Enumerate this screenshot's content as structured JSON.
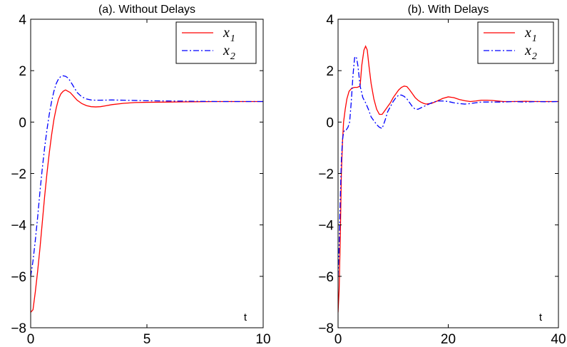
{
  "chart_data": [
    {
      "type": "line",
      "title": "(a). Without Delays",
      "xlabel": "t",
      "ylabel": "",
      "xlim": [
        0,
        10
      ],
      "ylim": [
        -8,
        4
      ],
      "xticks": [
        0,
        5,
        10
      ],
      "yticks": [
        -8,
        -6,
        -4,
        -2,
        0,
        2,
        4
      ],
      "xtick_labels": [
        "0",
        "5",
        "10"
      ],
      "ytick_labels": [
        "−8",
        "−6",
        "−4",
        "−2",
        "0",
        "2",
        "4"
      ],
      "grid": false,
      "legend_position": "top-right",
      "series": [
        {
          "name": "x",
          "name_sub": "1",
          "color": "#ff0000",
          "style": "solid",
          "x": [
            0,
            0.1,
            0.2,
            0.3,
            0.4,
            0.5,
            0.6,
            0.7,
            0.8,
            0.9,
            1.0,
            1.1,
            1.2,
            1.3,
            1.4,
            1.5,
            1.6,
            1.7,
            1.8,
            1.9,
            2.0,
            2.2,
            2.4,
            2.6,
            2.8,
            3.0,
            3.2,
            3.5,
            4.0,
            4.5,
            5.0,
            6.0,
            7.0,
            8.0,
            9.0,
            10.0
          ],
          "y": [
            -7.4,
            -7.3,
            -6.6,
            -5.8,
            -4.9,
            -3.9,
            -2.9,
            -2.0,
            -1.2,
            -0.5,
            0.1,
            0.55,
            0.9,
            1.1,
            1.2,
            1.25,
            1.2,
            1.15,
            1.05,
            0.95,
            0.85,
            0.72,
            0.64,
            0.6,
            0.59,
            0.6,
            0.63,
            0.68,
            0.73,
            0.76,
            0.77,
            0.78,
            0.79,
            0.8,
            0.8,
            0.8
          ]
        },
        {
          "name": "x",
          "name_sub": "2",
          "color": "#0000ff",
          "style": "dash-dot",
          "x": [
            0,
            0.1,
            0.2,
            0.3,
            0.4,
            0.5,
            0.6,
            0.7,
            0.8,
            0.9,
            1.0,
            1.1,
            1.2,
            1.3,
            1.4,
            1.5,
            1.6,
            1.7,
            1.8,
            1.9,
            2.0,
            2.2,
            2.4,
            2.6,
            2.8,
            3.0,
            3.5,
            4.0,
            5.0,
            6.0,
            7.0,
            8.0,
            9.0,
            10.0
          ],
          "y": [
            -6.0,
            -5.4,
            -4.6,
            -3.7,
            -2.7,
            -1.8,
            -1.0,
            -0.3,
            0.3,
            0.8,
            1.2,
            1.5,
            1.68,
            1.78,
            1.8,
            1.78,
            1.72,
            1.6,
            1.45,
            1.3,
            1.15,
            0.98,
            0.9,
            0.86,
            0.85,
            0.85,
            0.86,
            0.85,
            0.83,
            0.82,
            0.81,
            0.8,
            0.8,
            0.8
          ]
        }
      ]
    },
    {
      "type": "line",
      "title": "(b). With Delays",
      "xlabel": "t",
      "ylabel": "",
      "xlim": [
        0,
        40
      ],
      "ylim": [
        -8,
        4
      ],
      "xticks": [
        0,
        20,
        40
      ],
      "yticks": [
        -8,
        -6,
        -4,
        -2,
        0,
        2,
        4
      ],
      "xtick_labels": [
        "0",
        "20",
        "40"
      ],
      "ytick_labels": [
        "−8",
        "−6",
        "−4",
        "−2",
        "0",
        "2",
        "4"
      ],
      "grid": false,
      "legend_position": "top-right",
      "series": [
        {
          "name": "x",
          "name_sub": "1",
          "color": "#ff0000",
          "style": "solid",
          "x": [
            0,
            0.2,
            0.4,
            0.6,
            0.8,
            1.0,
            1.3,
            1.6,
            2.0,
            2.5,
            3.0,
            3.5,
            4.0,
            4.3,
            4.7,
            5.0,
            5.3,
            5.6,
            6.0,
            6.5,
            7.0,
            7.5,
            8.0,
            8.5,
            9.0,
            9.5,
            10.0,
            10.5,
            11.0,
            11.5,
            12.0,
            12.5,
            13.0,
            13.5,
            14.0,
            14.5,
            15.0,
            15.5,
            16.0,
            17.0,
            18.0,
            19.0,
            20.0,
            21.0,
            22.0,
            23.0,
            24.0,
            25.0,
            26.0,
            27.0,
            28.0,
            29.0,
            30.0,
            32.0,
            34.0,
            36.0,
            38.0,
            40.0
          ],
          "y": [
            -7.4,
            -6.5,
            -4.5,
            -2.0,
            -0.8,
            0.0,
            0.5,
            0.9,
            1.2,
            1.32,
            1.35,
            1.35,
            1.4,
            2.2,
            2.8,
            2.95,
            2.8,
            2.2,
            1.5,
            0.9,
            0.5,
            0.3,
            0.3,
            0.45,
            0.6,
            0.75,
            0.95,
            1.1,
            1.25,
            1.35,
            1.4,
            1.38,
            1.25,
            1.1,
            0.95,
            0.85,
            0.78,
            0.73,
            0.7,
            0.73,
            0.82,
            0.92,
            0.98,
            0.95,
            0.88,
            0.83,
            0.8,
            0.82,
            0.85,
            0.85,
            0.84,
            0.82,
            0.8,
            0.8,
            0.81,
            0.8,
            0.8,
            0.8
          ]
        },
        {
          "name": "x",
          "name_sub": "2",
          "color": "#0000ff",
          "style": "dash-dot",
          "x": [
            0,
            0.2,
            0.4,
            0.6,
            0.8,
            1.0,
            1.2,
            1.5,
            1.8,
            2.1,
            2.4,
            2.7,
            3.0,
            3.3,
            3.6,
            4.0,
            4.5,
            5.0,
            5.5,
            6.0,
            6.5,
            7.0,
            7.5,
            8.0,
            8.5,
            9.0,
            9.5,
            10.0,
            10.5,
            11.0,
            11.5,
            12.0,
            12.5,
            13.0,
            13.5,
            14.0,
            14.5,
            15.0,
            15.5,
            16.0,
            17.0,
            18.0,
            19.0,
            20.0,
            21.0,
            22.0,
            23.0,
            24.0,
            25.0,
            26.0,
            28.0,
            30.0,
            32.0,
            34.0,
            36.0,
            38.0,
            40.0
          ],
          "y": [
            -6.0,
            -4.8,
            -3.0,
            -1.5,
            -0.7,
            -0.4,
            -0.3,
            -0.3,
            -0.2,
            0.0,
            0.8,
            1.8,
            2.5,
            2.55,
            2.2,
            1.4,
            0.95,
            0.75,
            0.5,
            0.2,
            0.05,
            -0.1,
            -0.2,
            -0.25,
            0.05,
            0.4,
            0.6,
            0.8,
            0.95,
            1.05,
            1.05,
            1.0,
            0.9,
            0.75,
            0.6,
            0.5,
            0.5,
            0.55,
            0.6,
            0.65,
            0.75,
            0.82,
            0.82,
            0.8,
            0.75,
            0.72,
            0.7,
            0.72,
            0.75,
            0.78,
            0.78,
            0.78,
            0.8,
            0.78,
            0.8,
            0.79,
            0.8
          ]
        }
      ]
    }
  ]
}
